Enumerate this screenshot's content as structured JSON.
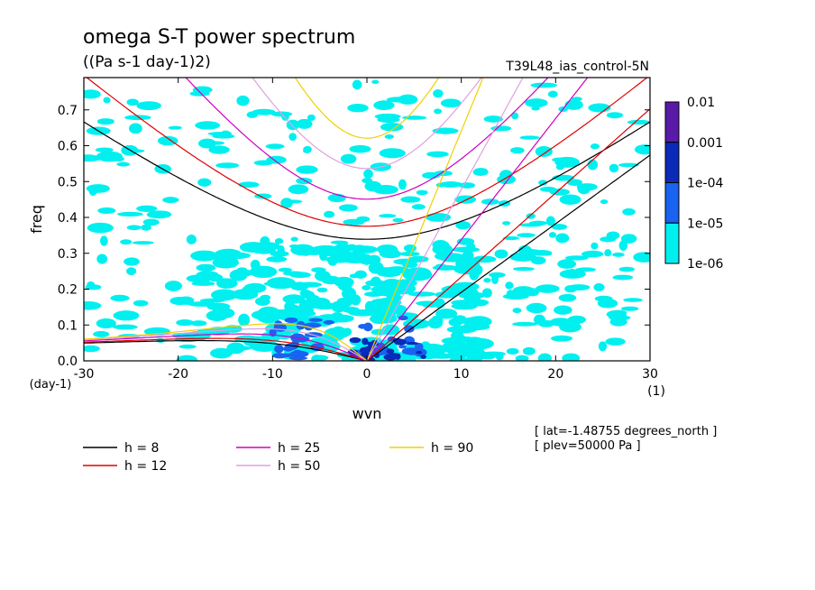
{
  "chart_data": {
    "type": "heatmap",
    "title": "omega S-T power spectrum",
    "subtitle": "((Pa s-1 day-1)2)",
    "run_label": "T39L48_ias_control-5N",
    "xlabel": "wvn",
    "ylabel": "freq",
    "x_unit": "(1)",
    "y_unit": "(day-1)",
    "xlim": [
      -30,
      30
    ],
    "ylim": [
      0,
      0.79
    ],
    "x_ticks": [
      -30,
      -20,
      -10,
      0,
      10,
      20,
      30
    ],
    "x_tick_labels": [
      "-30",
      "-20",
      "-10",
      "0",
      "10",
      "20",
      "30"
    ],
    "y_ticks": [
      0,
      0.1,
      0.2,
      0.3,
      0.4,
      0.5,
      0.6,
      0.7
    ],
    "y_tick_labels": [
      "0.0",
      "0.1",
      "0.2",
      "0.3",
      "0.4",
      "0.5",
      "0.6",
      "0.7"
    ],
    "colorbar": {
      "levels": [
        "0.01",
        "0.001",
        "1e-04",
        "1e-05",
        "1e-06"
      ],
      "colors": [
        "#5a1aa8",
        "#0a2ab8",
        "#1a62f0",
        "#00f0f0"
      ]
    },
    "dispersion_curves": [
      {
        "name": "h = 8",
        "h": 8,
        "color": "#000000"
      },
      {
        "name": "h = 12",
        "h": 12,
        "color": "#e00000"
      },
      {
        "name": "h = 25",
        "h": 25,
        "color": "#d000c0"
      },
      {
        "name": "h = 50",
        "h": 50,
        "color": "#e0a0e0"
      },
      {
        "name": "h = 90",
        "h": 90,
        "color": "#f0d000"
      }
    ],
    "annotations": [
      "[ lat=-1.48755 degrees_north ]",
      "[ plev=50000 Pa ]"
    ],
    "grid": false,
    "legend_position": "bottom-left"
  }
}
